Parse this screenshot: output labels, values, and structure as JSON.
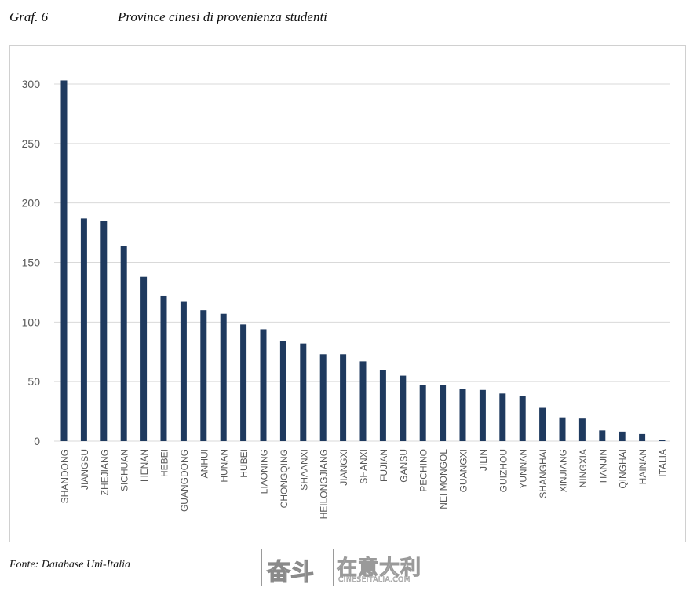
{
  "header": {
    "graf_label": "Graf. 6",
    "title": "Province cinesi di provenienza studenti"
  },
  "footer": {
    "source": "Fonte: Database Uni-Italia"
  },
  "watermark": {
    "logo_text": "奋斗",
    "brand_text": "在意大利",
    "url": "CINESEITALIA.COM"
  },
  "colors": {
    "bar": "#1f3a5f",
    "grid": "#d9d9d9",
    "axis_text": "#595959"
  },
  "chart_data": {
    "type": "bar",
    "title": "Province cinesi di provenienza studenti",
    "xlabel": "",
    "ylabel": "",
    "ylim": [
      0,
      300
    ],
    "yticks": [
      0,
      50,
      100,
      150,
      200,
      250,
      300
    ],
    "grid": true,
    "legend": "none",
    "categories": [
      "SHANDONG",
      "JIANGSU",
      "ZHEJIANG",
      "SICHUAN",
      "HENAN",
      "HEBEI",
      "GUANGDONG",
      "ANHUI",
      "HUNAN",
      "HUBEI",
      "LIAONING",
      "CHONGQING",
      "SHAANXI",
      "HEILONGJIANG",
      "JIANGXI",
      "SHANXI",
      "FUJIAN",
      "GANSU",
      "PECHINO",
      "NEI MONGOL",
      "GUANGXI",
      "JILIN",
      "GUIZHOU",
      "YUNNAN",
      "SHANGHAI",
      "XINJIANG",
      "NINGXIA",
      "TIANJIN",
      "QINGHAI",
      "HAINAN",
      "ITALIA"
    ],
    "values": [
      303,
      187,
      185,
      164,
      138,
      122,
      117,
      110,
      107,
      98,
      94,
      84,
      82,
      73,
      73,
      67,
      60,
      55,
      47,
      47,
      44,
      43,
      40,
      38,
      28,
      20,
      19,
      9,
      8,
      6,
      1
    ]
  }
}
